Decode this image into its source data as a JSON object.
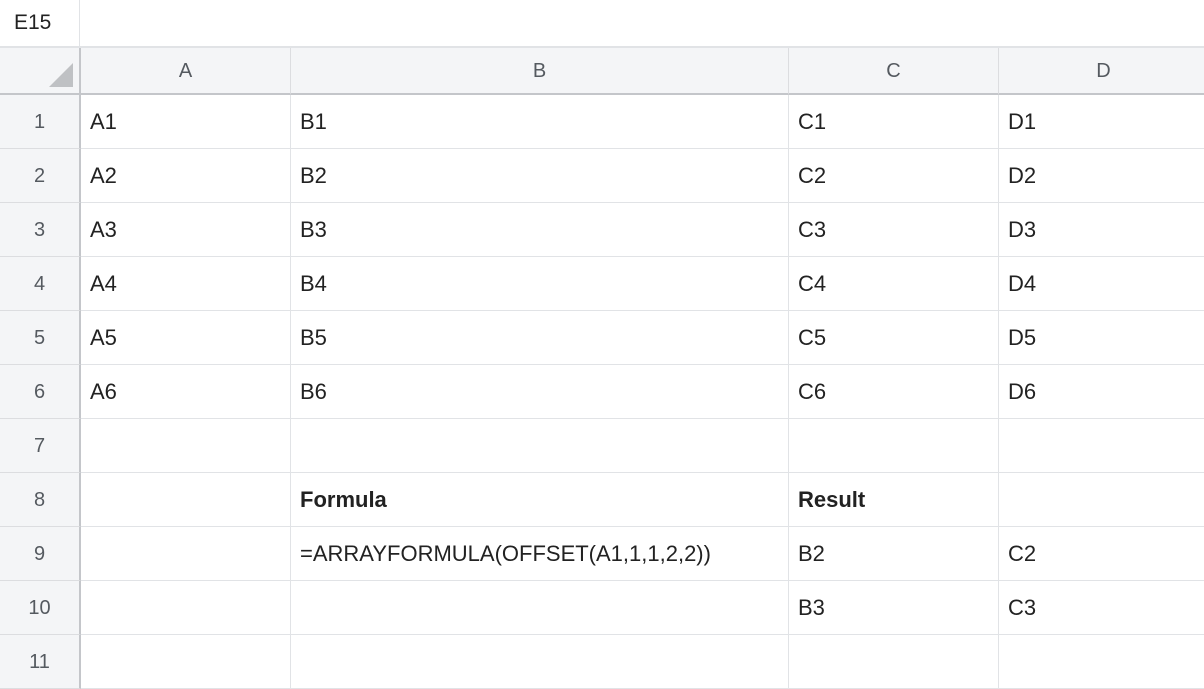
{
  "name_box": "E15",
  "formula_bar": "",
  "columns": [
    "A",
    "B",
    "C",
    "D"
  ],
  "rows": [
    [
      "A1",
      "B1",
      "C1",
      "D1"
    ],
    [
      "A2",
      "B2",
      "C2",
      "D2"
    ],
    [
      "A3",
      "B3",
      "C3",
      "D3"
    ],
    [
      "A4",
      "B4",
      "C4",
      "D4"
    ],
    [
      "A5",
      "B5",
      "C5",
      "D5"
    ],
    [
      "A6",
      "B6",
      "C6",
      "D6"
    ],
    [
      "",
      "",
      "",
      ""
    ],
    [
      "",
      "Formula",
      "Result",
      ""
    ],
    [
      "",
      "=ARRAYFORMULA(OFFSET(A1,1,1,2,2))",
      "B2",
      "C2"
    ],
    [
      "",
      "",
      "B3",
      "C3"
    ],
    [
      "",
      "",
      "",
      ""
    ]
  ],
  "bold_rows": [
    8
  ]
}
